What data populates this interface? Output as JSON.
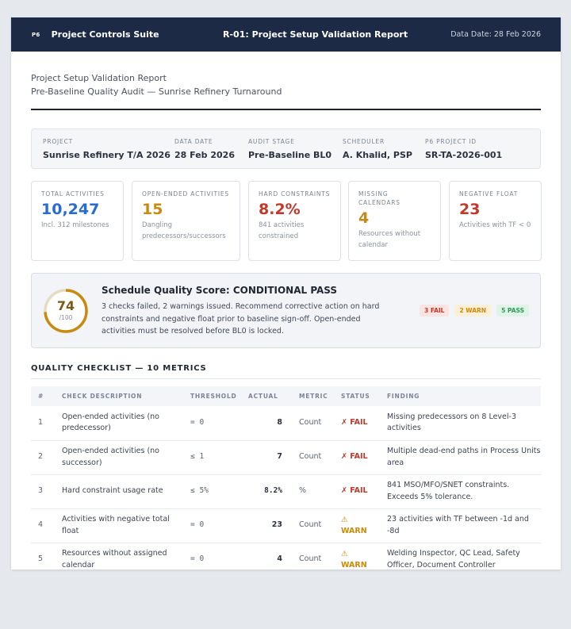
{
  "header": {
    "logo": "P6",
    "suite": "Project Controls Suite",
    "report_title": "R-01: Project Setup Validation Report",
    "data_date": "Data Date: 28 Feb 2026"
  },
  "report": {
    "title": "Project Setup Validation Report",
    "subtitle": "Pre-Baseline Quality Audit — Sunrise Refinery Turnaround"
  },
  "meta": [
    {
      "label": "PROJECT",
      "value": "Sunrise Refinery T/A 2026"
    },
    {
      "label": "DATA DATE",
      "value": "28 Feb 2026"
    },
    {
      "label": "AUDIT STAGE",
      "value": "Pre-Baseline BL0"
    },
    {
      "label": "SCHEDULER",
      "value": "A. Khalid, PSP"
    },
    {
      "label": "P6 PROJECT ID",
      "value": "SR-TA-2026-001"
    }
  ],
  "kpis": [
    {
      "label": "TOTAL ACTIVITIES",
      "value": "10,247",
      "sub": "Incl. 312 milestones",
      "color": "#2a6bd1"
    },
    {
      "label": "OPEN-ENDED ACTIVITIES",
      "value": "15",
      "sub": "Dangling predecessors/successors",
      "color": "#c98a10"
    },
    {
      "label": "HARD CONSTRAINTS",
      "value": "8.2%",
      "sub": "841 activities constrained",
      "color": "#c0392b"
    },
    {
      "label": "MISSING CALENDARS",
      "value": "4",
      "sub": "Resources without calendar",
      "color": "#c98a10"
    },
    {
      "label": "NEGATIVE FLOAT",
      "value": "23",
      "sub": "Activities with TF < 0",
      "color": "#c0392b"
    }
  ],
  "score": {
    "value": "74",
    "max": "/100",
    "fraction": 0.74,
    "title": "Schedule Quality Score: CONDITIONAL PASS",
    "description": "3 checks failed, 2 warnings issued. Recommend corrective action on hard constraints and negative float prior to baseline sign-off. Open-ended activities must be resolved before BL0 is locked.",
    "pills": [
      {
        "label": "3 FAIL",
        "fg": "#c0392b",
        "bg": "#fbe3e1"
      },
      {
        "label": "2 WARN",
        "fg": "#c98a10",
        "bg": "#fbefd6"
      },
      {
        "label": "5 PASS",
        "fg": "#2e9a5a",
        "bg": "#dff3e6"
      }
    ]
  },
  "checklist": {
    "title": "QUALITY CHECKLIST — 10 METRICS",
    "columns": [
      "#",
      "CHECK DESCRIPTION",
      "THRESHOLD",
      "ACTUAL",
      "METRIC",
      "STATUS",
      "FINDING"
    ],
    "rows": [
      {
        "n": "1",
        "desc": "Open-ended activities (no predecessor)",
        "threshold": "= 0",
        "actual": "8",
        "metric": "Count",
        "status": "✗ FAIL",
        "kind": "fail",
        "finding": "Missing predecessors on 8 Level-3 activities"
      },
      {
        "n": "2",
        "desc": "Open-ended activities (no successor)",
        "threshold": "≤ 1",
        "actual": "7",
        "metric": "Count",
        "status": "✗ FAIL",
        "kind": "fail",
        "finding": "Multiple dead-end paths in Process Units area"
      },
      {
        "n": "3",
        "desc": "Hard constraint usage rate",
        "threshold": "≤ 5%",
        "actual": "8.2%",
        "metric": "%",
        "status": "✗ FAIL",
        "kind": "fail",
        "finding": "841 MSO/MFO/SNET constraints. Exceeds 5% tolerance."
      },
      {
        "n": "4",
        "desc": "Activities with negative total float",
        "threshold": "= 0",
        "actual": "23",
        "metric": "Count",
        "status": "⚠ WARN",
        "kind": "warn",
        "finding": "23 activities with TF between -1d and -8d"
      },
      {
        "n": "5",
        "desc": "Resources without assigned calendar",
        "threshold": "= 0",
        "actual": "4",
        "metric": "Count",
        "status": "⚠ WARN",
        "kind": "warn",
        "finding": "Welding Inspector, QC Lead, Safety Officer, Document Controller"
      }
    ]
  }
}
